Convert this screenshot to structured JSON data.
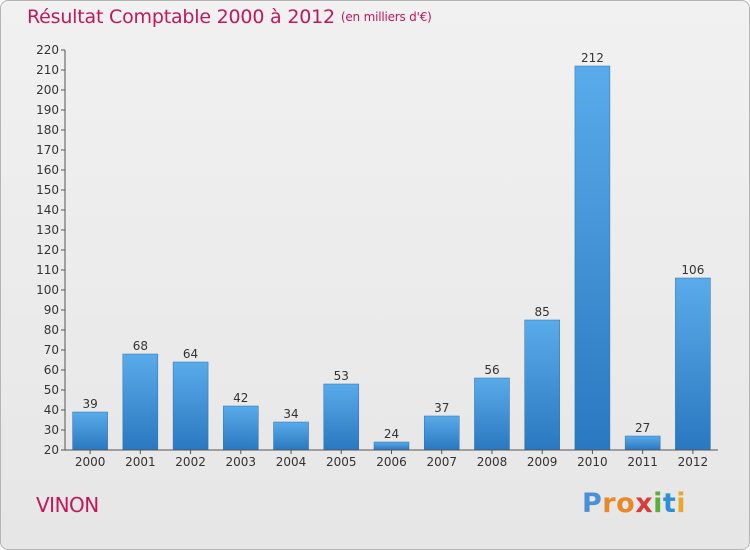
{
  "chart_data": {
    "type": "bar",
    "title": "Résultat Comptable 2000 à 2012",
    "subtitle": "(en milliers d'€)",
    "categories": [
      "2000",
      "2001",
      "2002",
      "2003",
      "2004",
      "2005",
      "2006",
      "2007",
      "2008",
      "2009",
      "2010",
      "2011",
      "2012"
    ],
    "values": [
      39,
      68,
      64,
      42,
      34,
      53,
      24,
      37,
      56,
      85,
      212,
      27,
      106
    ],
    "ylim": [
      20,
      220
    ],
    "ytick_step": 10,
    "xlabel": "",
    "ylabel": "",
    "grid": false,
    "bar_color": "#3a8fd6"
  },
  "place_name": "VINON",
  "brand": {
    "letters": [
      "P",
      "r",
      "o",
      "x",
      "i",
      "t",
      "i"
    ],
    "colors": [
      "#4a8fd8",
      "#e8882a",
      "#e8882a",
      "#d93b3b",
      "#5cae3c",
      "#2f8fd4",
      "#e8a62a"
    ]
  }
}
